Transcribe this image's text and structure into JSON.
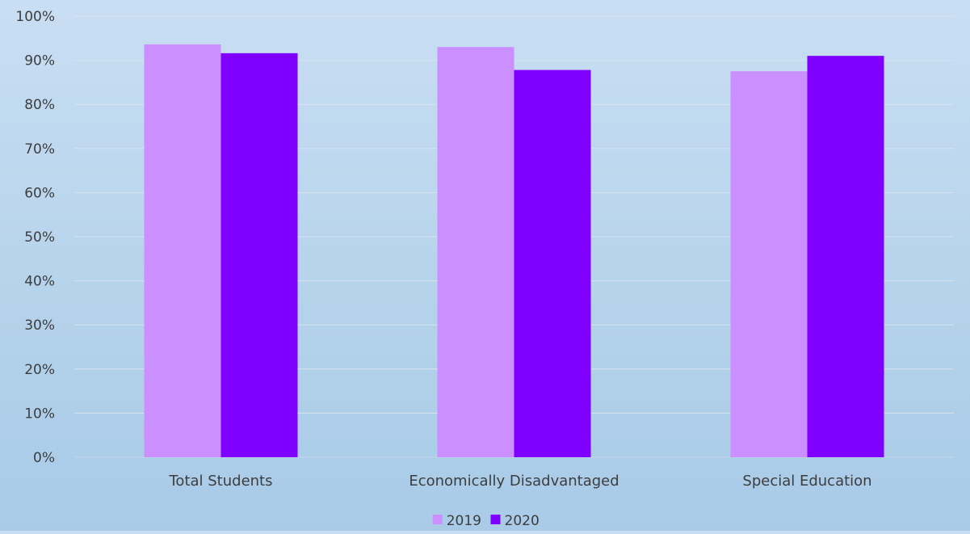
{
  "chart_data": {
    "type": "bar",
    "categories": [
      "Total Students",
      "Economically Disadvantaged",
      "Special Education"
    ],
    "series": [
      {
        "name": "2019",
        "values": [
          93.6,
          93.0,
          87.5
        ],
        "color": "#cc8fff"
      },
      {
        "name": "2020",
        "values": [
          91.6,
          87.8,
          91.0
        ],
        "color": "#8000ff"
      }
    ],
    "y_ticks": [
      "0%",
      "10%",
      "20%",
      "30%",
      "40%",
      "50%",
      "60%",
      "70%",
      "80%",
      "90%",
      "100%"
    ],
    "ylim": [
      0,
      100
    ],
    "grid": true,
    "legend_position": "bottom",
    "title": "",
    "xlabel": "",
    "ylabel": ""
  }
}
